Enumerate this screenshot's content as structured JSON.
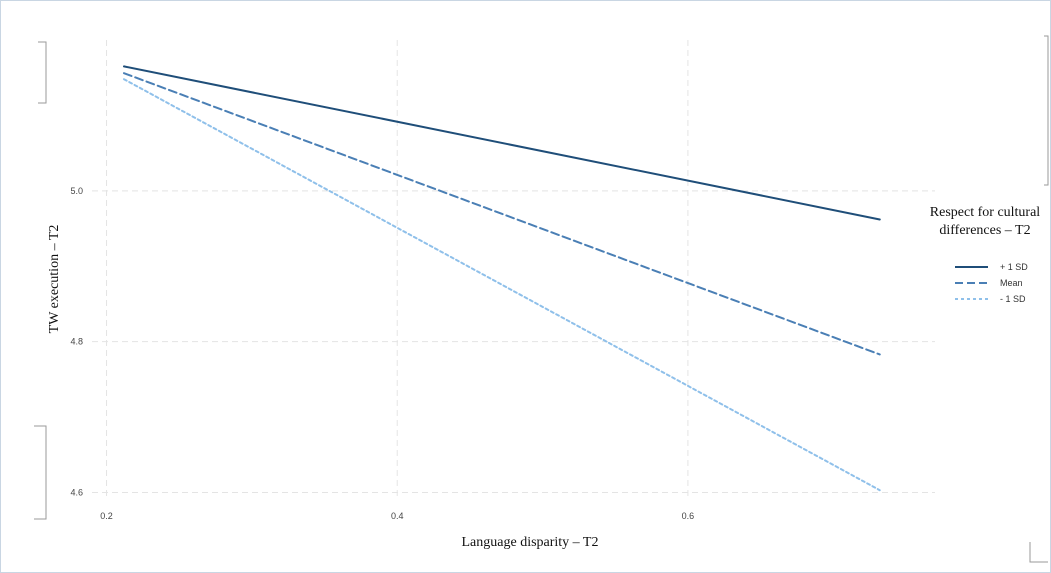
{
  "chart_data": {
    "type": "line",
    "xlabel": "Language disparity – T2",
    "ylabel": "TW execution – T2",
    "xlim": [
      0.19,
      0.77
    ],
    "ylim": [
      4.59,
      5.2
    ],
    "x_ticks": [
      0.2,
      0.4,
      0.6
    ],
    "x_tick_labels": [
      "0.2",
      "0.4",
      "0.6"
    ],
    "y_ticks": [
      4.6,
      4.8,
      5.0
    ],
    "y_tick_labels": [
      "4.6",
      "4.8",
      "5.0"
    ],
    "grid": true,
    "legend": {
      "title": [
        "Respect for cultural",
        "differences – T2"
      ],
      "position": "right"
    },
    "series": [
      {
        "name": "+ 1 SD",
        "x": [
          0.212,
          0.732
        ],
        "y": [
          5.165,
          4.962
        ],
        "color": "#1f4e79",
        "dash": "solid"
      },
      {
        "name": "Mean",
        "x": [
          0.212,
          0.732
        ],
        "y": [
          5.156,
          4.783
        ],
        "color": "#4a7fb5",
        "dash": "dashed"
      },
      {
        "name": "- 1 SD",
        "x": [
          0.212,
          0.732
        ],
        "y": [
          5.148,
          4.603
        ],
        "color": "#8fc0ea",
        "dash": "dotted"
      }
    ]
  }
}
